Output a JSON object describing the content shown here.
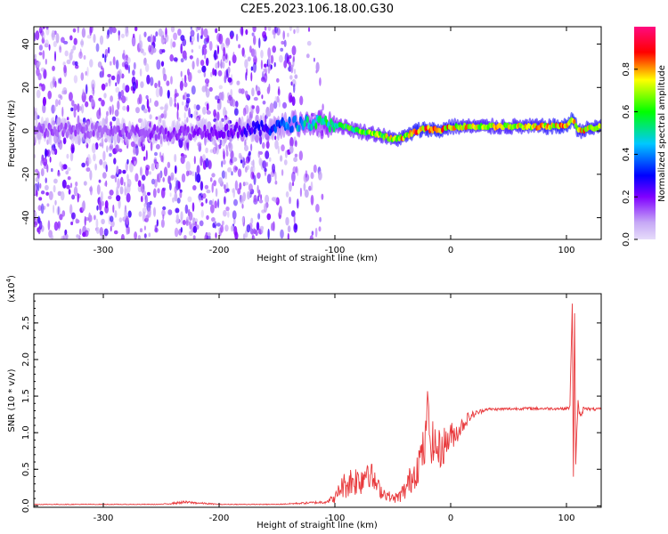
{
  "title": "C2E5.2023.106.18.00.G30",
  "chart_data": [
    {
      "type": "heatmap",
      "xlabel": "Height of straight line (km)",
      "ylabel": "Frequency (Hz)",
      "xlim": [
        -360,
        130
      ],
      "ylim": [
        -50,
        48
      ],
      "x_ticks": [
        -300,
        -200,
        -100,
        0,
        100
      ],
      "y_ticks": [
        -40,
        -20,
        0,
        20,
        40
      ],
      "grid": false,
      "colorbar": {
        "label": "Normalized spectral amplitude",
        "range": [
          0.0,
          1.0
        ],
        "ticks": [
          "0.0",
          "0.2",
          "0.4",
          "0.6",
          "0.8"
        ],
        "colormap": [
          "#d8c8f8",
          "#8000ff",
          "#0000ff",
          "#00ffff",
          "#00ff00",
          "#ffff00",
          "#ff0000",
          "#ff0080"
        ]
      },
      "ridge": {
        "x": [
          -360,
          -300,
          -250,
          -200,
          -160,
          -140,
          -120,
          -100,
          -80,
          -60,
          -50,
          -40,
          -30,
          -20,
          -10,
          0,
          20,
          50,
          80,
          100,
          105,
          110,
          130
        ],
        "y": [
          0,
          0,
          -1,
          0,
          1,
          3,
          4,
          3,
          0,
          -2,
          -4,
          -3,
          0,
          1,
          0,
          2,
          2,
          2,
          2,
          2,
          6,
          0,
          2
        ],
        "amplitude": [
          0.15,
          0.15,
          0.18,
          0.2,
          0.3,
          0.4,
          0.55,
          0.6,
          0.65,
          0.7,
          0.75,
          0.8,
          0.85,
          0.85,
          0.85,
          0.8,
          0.75,
          0.75,
          0.8,
          0.85,
          0.9,
          0.8,
          0.8
        ]
      }
    },
    {
      "type": "line",
      "xlabel": "Height of straight line (km)",
      "ylabel": "SNR (10 * v/v)",
      "y_multiplier": "(x10",
      "y_multiplier_exp": "4",
      "y_multiplier_close": ")",
      "xlim": [
        -360,
        130
      ],
      "ylim": [
        -0.02,
        2.9
      ],
      "x_ticks": [
        -300,
        -200,
        -100,
        0,
        100
      ],
      "y_ticks": [
        0.0,
        0.5,
        1.0,
        1.5,
        2.0,
        2.5
      ],
      "grid": false,
      "series_color": "#e8383b",
      "series": [
        {
          "x": [
            -360,
            -250,
            -230,
            -200,
            -150,
            -110,
            -100,
            -95,
            -90,
            -85,
            -80,
            -75,
            -72,
            -70,
            -65,
            -60,
            -55,
            -50,
            -45,
            -40,
            -35,
            -30,
            -25,
            -22,
            -20,
            -18,
            -15,
            -10,
            -5,
            0,
            5,
            10,
            15,
            20,
            30,
            40,
            60,
            80,
            100,
            103,
            105,
            106,
            107,
            108,
            110,
            112,
            115,
            120,
            130
          ],
          "y": [
            0.02,
            0.02,
            0.05,
            0.02,
            0.02,
            0.05,
            0.1,
            0.25,
            0.3,
            0.35,
            0.35,
            0.4,
            0.55,
            0.45,
            0.3,
            0.2,
            0.15,
            0.1,
            0.12,
            0.2,
            0.35,
            0.5,
            0.7,
            0.8,
            1.5,
            0.9,
            0.85,
            0.75,
            0.85,
            0.95,
            1.0,
            1.1,
            1.2,
            1.25,
            1.32,
            1.32,
            1.33,
            1.33,
            1.33,
            1.35,
            2.8,
            0.4,
            2.6,
            0.6,
            1.4,
            1.2,
            1.35,
            1.32,
            1.32
          ],
          "noise_amplitude": [
            0.005,
            0.005,
            0.02,
            0.005,
            0.005,
            0.02,
            0.06,
            0.15,
            0.2,
            0.22,
            0.22,
            0.25,
            0.2,
            0.22,
            0.15,
            0.1,
            0.08,
            0.06,
            0.08,
            0.15,
            0.2,
            0.25,
            0.3,
            0.3,
            0.1,
            0.3,
            0.3,
            0.3,
            0.25,
            0.2,
            0.15,
            0.12,
            0.08,
            0.05,
            0.02,
            0.02,
            0.02,
            0.02,
            0.02,
            0.03,
            0.05,
            0.05,
            0.05,
            0.05,
            0.05,
            0.05,
            0.03,
            0.02,
            0.02
          ]
        }
      ]
    }
  ]
}
